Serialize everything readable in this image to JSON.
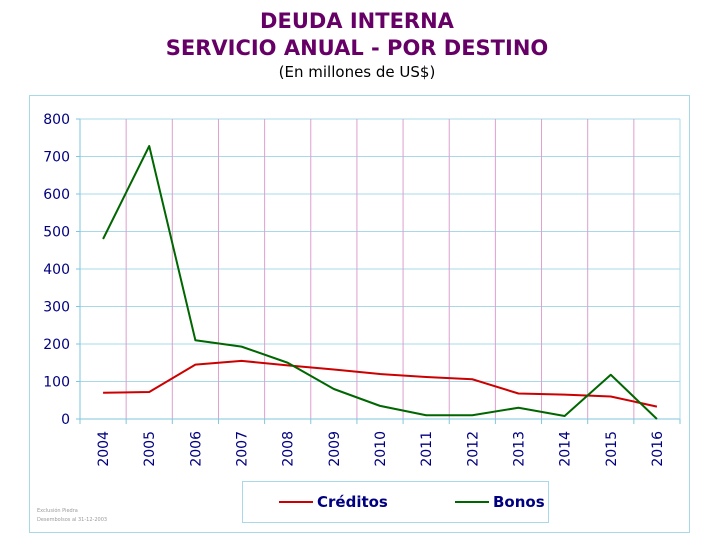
{
  "header": {
    "title_line1": "DEUDA INTERNA",
    "title_line2": "SERVICIO ANUAL - POR DESTINO",
    "subtitle": "(En millones de US$)"
  },
  "source": {
    "line1": "Exclusión Piedra",
    "line2": "Desembolsos al 31-12-2003"
  },
  "chart_data": {
    "type": "line",
    "title": "DEUDA INTERNA SERVICIO ANUAL - POR DESTINO",
    "subtitle": "(En millones de US$)",
    "x": [
      "2004",
      "2005",
      "2006",
      "2007",
      "2008",
      "2009",
      "2010",
      "2011",
      "2012",
      "2013",
      "2014",
      "2015",
      "2016"
    ],
    "ylim": [
      0,
      800
    ],
    "yticks": [
      0,
      100,
      200,
      300,
      400,
      500,
      600,
      700,
      800
    ],
    "grid": true,
    "legend_position": "bottom",
    "series": [
      {
        "name": "Créditos",
        "color": "#cc0000",
        "values": [
          70,
          72,
          145,
          155,
          143,
          132,
          120,
          112,
          106,
          68,
          65,
          60,
          33
        ]
      },
      {
        "name": "Bonos",
        "color": "#006600",
        "values": [
          480,
          728,
          210,
          193,
          150,
          80,
          35,
          10,
          10,
          30,
          8,
          118,
          0
        ]
      }
    ]
  }
}
